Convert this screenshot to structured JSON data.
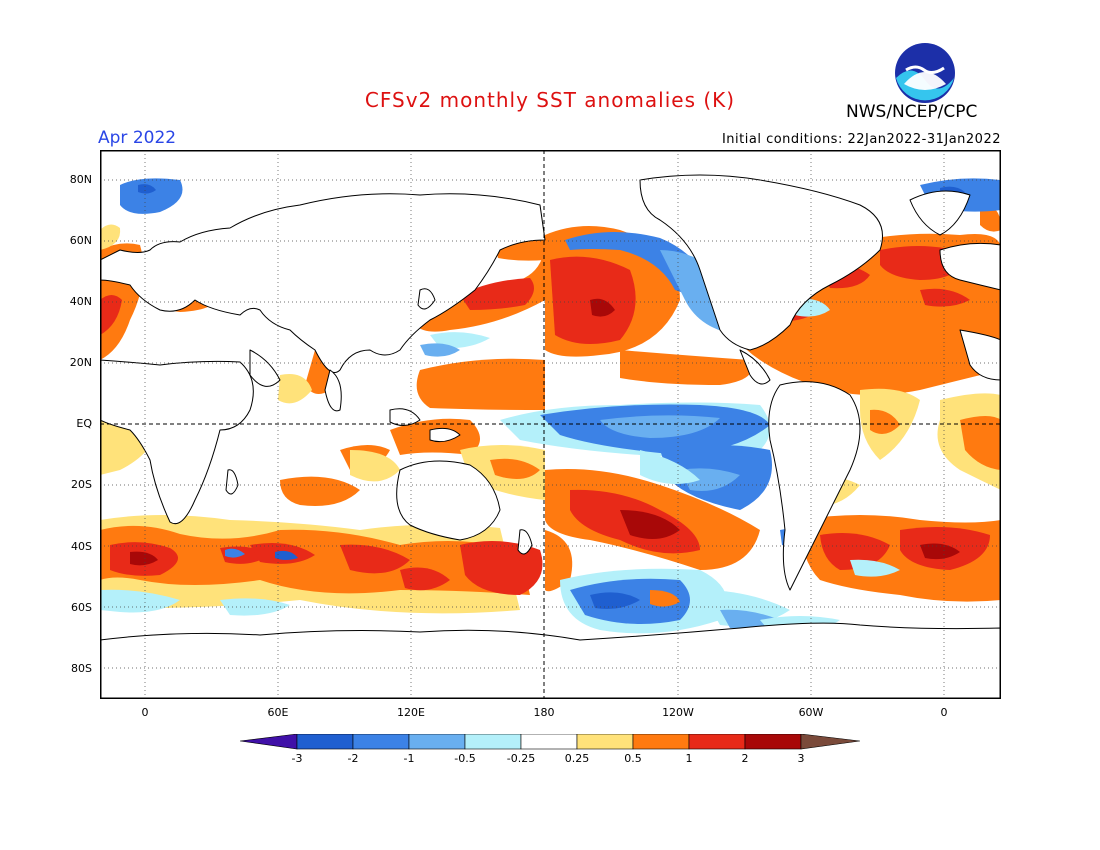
{
  "header": {
    "title": "CFSv2 monthly SST anomalies (K)",
    "month": "Apr 2022",
    "agency": "NWS/NCEP/CPC",
    "initial_conditions": "Initial conditions: 22Jan2022-31Jan2022",
    "logo_icon": "noaa-logo-icon"
  },
  "map": {
    "projection": "equirectangular",
    "center": "180",
    "lat_ticks": [
      "80N",
      "60N",
      "40N",
      "20N",
      "EQ",
      "20S",
      "40S",
      "60S",
      "80S"
    ],
    "lon_ticks": [
      "0",
      "60E",
      "120E",
      "180",
      "120W",
      "60W",
      "0"
    ],
    "grid": "dotted",
    "reference_lines": [
      "EQ",
      "180"
    ]
  },
  "colorbar": {
    "labels": [
      "-3",
      "-2",
      "-1",
      "-0.5",
      "-0.25",
      "0.25",
      "0.5",
      "1",
      "2",
      "3"
    ],
    "colors": [
      "#4010a8",
      "#1f5fd0",
      "#3c82e6",
      "#69aff0",
      "#b4f0fa",
      "#ffffff",
      "#ffe27a",
      "#ff7a10",
      "#e82a18",
      "#a80808",
      "#7a4a3a"
    ]
  },
  "palette": {
    "land": "#ffffff",
    "coast": "#000000",
    "blue_dark": "#1f5fd0",
    "blue": "#3c82e6",
    "blue_light": "#69aff0",
    "cyan": "#b4f0fa",
    "yellow": "#ffe27a",
    "orange": "#ff7a10",
    "red": "#e82a18",
    "dark_red": "#a80808"
  }
}
